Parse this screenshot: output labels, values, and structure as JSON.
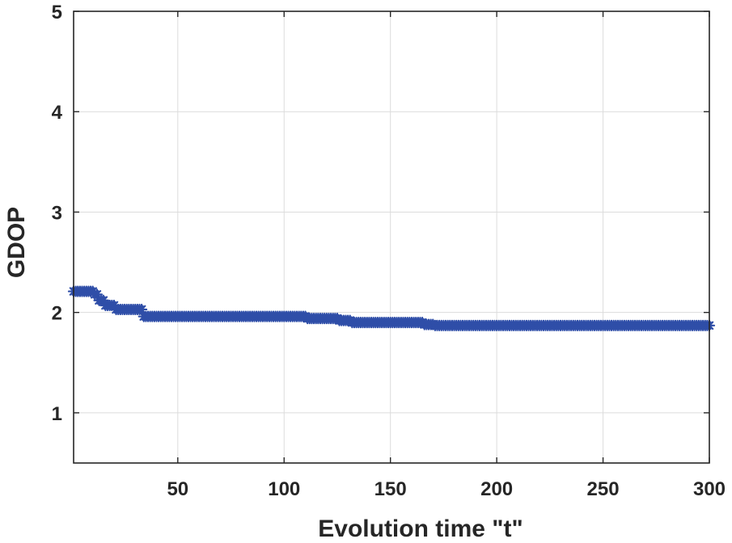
{
  "chart_data": {
    "type": "scatter",
    "xlabel": "Evolution time \"t\"",
    "ylabel": "GDOP",
    "xlim": [
      1,
      300
    ],
    "ylim": [
      0.5,
      5
    ],
    "xticks": [
      50,
      100,
      150,
      200,
      250,
      300
    ],
    "yticks": [
      1,
      2,
      3,
      4,
      5
    ],
    "grid": true,
    "marker": "asterisk",
    "series": [
      {
        "color": "#2f4ea8",
        "segments": [
          {
            "t_start": 1,
            "t_end": 10,
            "value": 2.21
          },
          {
            "t_start": 11,
            "t_end": 12,
            "value": 2.18
          },
          {
            "t_start": 13,
            "t_end": 15,
            "value": 2.12
          },
          {
            "t_start": 16,
            "t_end": 20,
            "value": 2.07
          },
          {
            "t_start": 21,
            "t_end": 33,
            "value": 2.03
          },
          {
            "t_start": 34,
            "t_end": 110,
            "value": 1.96
          },
          {
            "t_start": 111,
            "t_end": 125,
            "value": 1.94
          },
          {
            "t_start": 126,
            "t_end": 131,
            "value": 1.92
          },
          {
            "t_start": 132,
            "t_end": 165,
            "value": 1.9
          },
          {
            "t_start": 166,
            "t_end": 170,
            "value": 1.88
          },
          {
            "t_start": 171,
            "t_end": 300,
            "value": 1.87
          }
        ]
      }
    ]
  }
}
